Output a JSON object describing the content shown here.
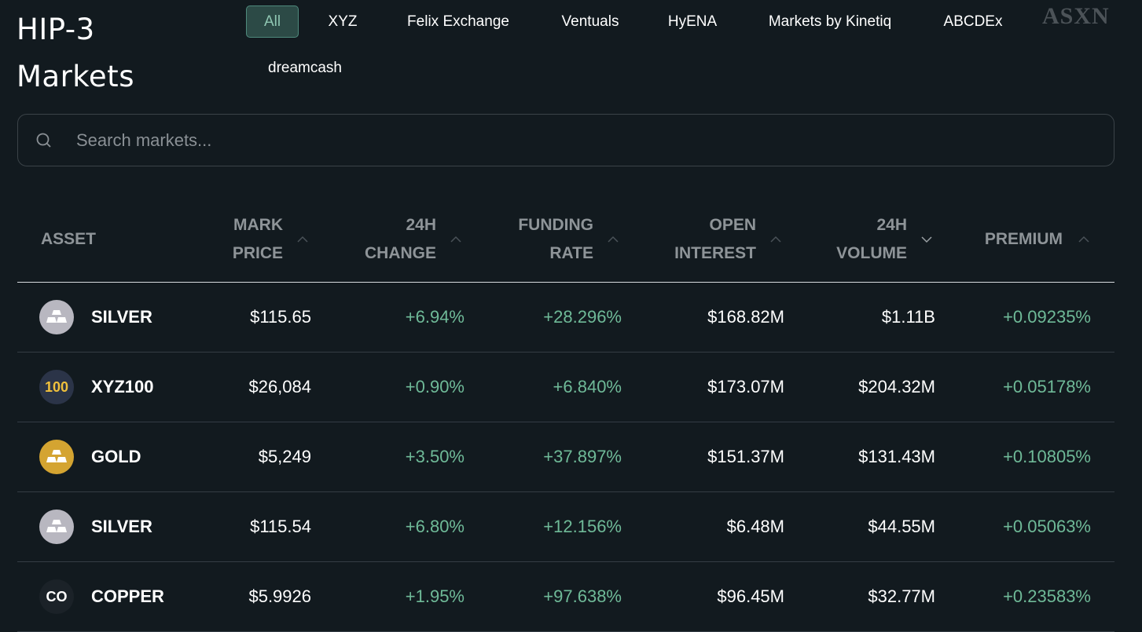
{
  "header": {
    "title_line1": "HIP-3",
    "title_line2": "Markets",
    "watermark": "ASXN"
  },
  "tabs": [
    "All",
    "XYZ",
    "Felix Exchange",
    "Ventuals",
    "HyENA",
    "Markets by Kinetiq",
    "ABCDEx",
    "dreamcash"
  ],
  "active_tab": "All",
  "search": {
    "placeholder": "Search markets...",
    "value": ""
  },
  "columns": [
    {
      "label": "ASSET"
    },
    {
      "label": "MARK PRICE",
      "sort": "up"
    },
    {
      "label": "24H CHANGE",
      "sort": "up"
    },
    {
      "label": "FUNDING RATE",
      "sort": "up"
    },
    {
      "label": "OPEN INTEREST",
      "sort": "up"
    },
    {
      "label": "24H VOLUME",
      "sort": "down"
    },
    {
      "label": "PREMIUM",
      "sort": "up"
    }
  ],
  "rows": [
    {
      "asset": "SILVER",
      "icon": "silver-bars-icon",
      "icon_text": "",
      "icon_bg": "#b8b7c0",
      "icon_fg": "#ffffff",
      "mark": "$115.65",
      "change": "+6.94%",
      "funding": "+28.296%",
      "oi": "$168.82M",
      "volume": "$1.11B",
      "premium": "+0.09235%"
    },
    {
      "asset": "XYZ100",
      "icon": "xyz100-icon",
      "icon_text": "100",
      "icon_bg": "#2b3448",
      "icon_fg": "#f0c03c",
      "mark": "$26,084",
      "change": "+0.90%",
      "funding": "+6.840%",
      "oi": "$173.07M",
      "volume": "$204.32M",
      "premium": "+0.05178%"
    },
    {
      "asset": "GOLD",
      "icon": "gold-bars-icon",
      "icon_text": "",
      "icon_bg": "#d4a431",
      "icon_fg": "#ffffff",
      "mark": "$5,249",
      "change": "+3.50%",
      "funding": "+37.897%",
      "oi": "$151.37M",
      "volume": "$131.43M",
      "premium": "+0.10805%"
    },
    {
      "asset": "SILVER",
      "icon": "silver-bars-icon",
      "icon_text": "",
      "icon_bg": "#b8b7c0",
      "icon_fg": "#ffffff",
      "mark": "$115.54",
      "change": "+6.80%",
      "funding": "+12.156%",
      "oi": "$6.48M",
      "volume": "$44.55M",
      "premium": "+0.05063%"
    },
    {
      "asset": "COPPER",
      "icon": "copper-icon",
      "icon_text": "CO",
      "icon_bg": "#1b2228",
      "icon_fg": "#ffffff",
      "mark": "$5.9926",
      "change": "+1.95%",
      "funding": "+97.638%",
      "oi": "$96.45M",
      "volume": "$32.77M",
      "premium": "+0.23583%"
    }
  ],
  "colors": {
    "background": "#121a1f",
    "positive": "#6fba98",
    "active_tab_bg": "#2c4a46",
    "header_text": "#8e9498"
  }
}
